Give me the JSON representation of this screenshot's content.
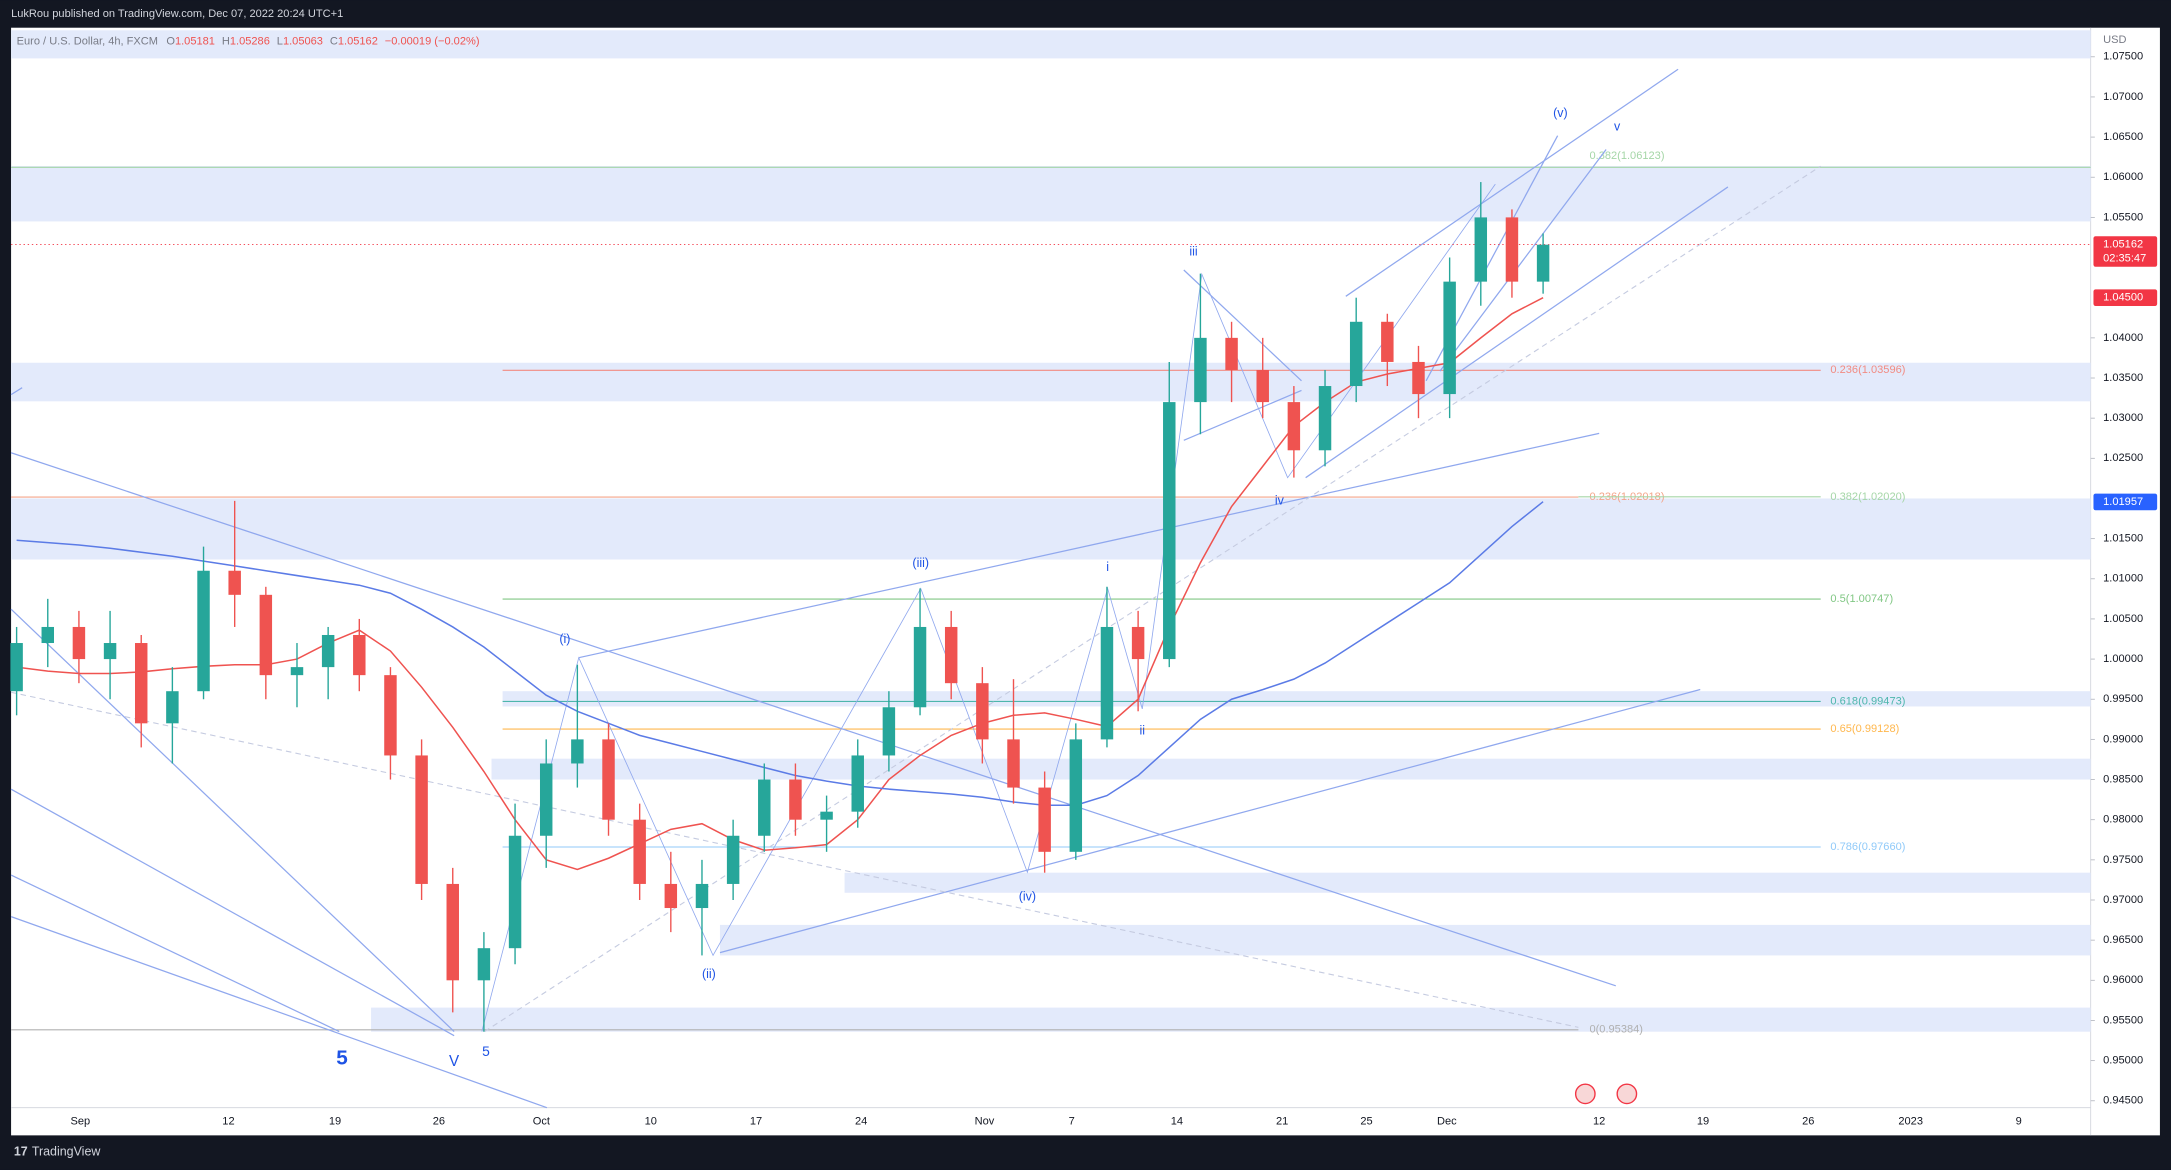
{
  "header": {
    "publisher": "LukRou published on TradingView.com, Dec 07, 2022 20:24 UTC+1",
    "brand": "TradingView"
  },
  "legend": {
    "symbol": "Euro / U.S. Dollar, 4h, FXCM",
    "items": [
      {
        "key": "O",
        "value": 1.05181
      },
      {
        "key": "H",
        "value": 1.05286
      },
      {
        "key": "L",
        "value": 1.05063
      },
      {
        "key": "C",
        "value": 1.05162
      }
    ],
    "change": "−0.00019 (−0.02%)"
  },
  "chart_data": {
    "type": "candlestick",
    "currency": "USD",
    "ylim": [
      0.94414,
      1.07862
    ],
    "grid": false,
    "yticks": [
      {
        "value": 1.075,
        "label": "1.07500"
      },
      {
        "value": 1.07,
        "label": "1.07000"
      },
      {
        "value": 1.065,
        "label": "1.06500"
      },
      {
        "value": 1.06,
        "label": "1.06000"
      },
      {
        "value": 1.055,
        "label": "1.05500"
      },
      {
        "value": 1.04,
        "label": "1.04000"
      },
      {
        "value": 1.035,
        "label": "1.03500"
      },
      {
        "value": 1.03,
        "label": "1.03000"
      },
      {
        "value": 1.025,
        "label": "1.02500"
      },
      {
        "value": 1.015,
        "label": "1.01500"
      },
      {
        "value": 1.01,
        "label": "1.01000"
      },
      {
        "value": 1.005,
        "label": "1.00500"
      },
      {
        "value": 1,
        "label": "1.00000"
      },
      {
        "value": 0.995,
        "label": "0.99500"
      },
      {
        "value": 0.99,
        "label": "0.99000"
      },
      {
        "value": 0.985,
        "label": "0.98500"
      },
      {
        "value": 0.98,
        "label": "0.98000"
      },
      {
        "value": 0.975,
        "label": "0.97500"
      },
      {
        "value": 0.97,
        "label": "0.97000"
      },
      {
        "value": 0.965,
        "label": "0.96500"
      },
      {
        "value": 0.96,
        "label": "0.96000"
      },
      {
        "value": 0.955,
        "label": "0.95500"
      },
      {
        "value": 0.95,
        "label": "0.95000"
      },
      {
        "value": 0.945,
        "label": "0.94500"
      }
    ],
    "x_labels": [
      "Sep",
      "12",
      "19",
      "26",
      "Oct",
      "10",
      "17",
      "24",
      "Nov",
      "7",
      "14",
      "21",
      "25",
      "Dec",
      "12",
      "19",
      "26",
      "2023",
      "9"
    ],
    "up_color": "#26a69a",
    "down_color": "#ef5350",
    "open": [
      0.996,
      1.002,
      1.004,
      1.0,
      1.002,
      0.992,
      0.996,
      1.011,
      1.008,
      0.998,
      0.999,
      1.003,
      0.998,
      0.988,
      0.972,
      0.96,
      0.964,
      0.978,
      0.987,
      0.99,
      0.98,
      0.972,
      0.969,
      0.972,
      0.978,
      0.985,
      0.98,
      0.981,
      0.988,
      0.994,
      1.004,
      0.997,
      0.99,
      0.984,
      0.976,
      0.99,
      1.004,
      1.0,
      1.032,
      1.04,
      1.036,
      1.032,
      1.026,
      1.034,
      1.042,
      1.037,
      1.033,
      1.047,
      1.055,
      1.047
    ],
    "high": [
      1.004,
      1.0075,
      1.006,
      1.006,
      1.003,
      0.999,
      1.014,
      1.0197,
      1.009,
      1.002,
      1.004,
      1.005,
      0.999,
      0.99,
      0.974,
      0.966,
      0.982,
      0.99,
      0.9993,
      0.992,
      0.982,
      0.976,
      0.975,
      0.98,
      0.987,
      0.987,
      0.983,
      0.99,
      0.996,
      1.0088,
      1.006,
      0.999,
      0.9975,
      0.986,
      0.992,
      1.009,
      1.006,
      1.037,
      1.048,
      1.042,
      1.04,
      1.034,
      1.036,
      1.045,
      1.043,
      1.039,
      1.05,
      1.0594,
      1.056,
      1.053
    ],
    "low": [
      0.993,
      0.999,
      0.997,
      0.995,
      0.989,
      0.987,
      0.995,
      1.004,
      0.995,
      0.994,
      0.995,
      0.996,
      0.985,
      0.97,
      0.956,
      0.9536,
      0.962,
      0.974,
      0.984,
      0.978,
      0.97,
      0.966,
      0.9631,
      0.97,
      0.976,
      0.978,
      0.976,
      0.979,
      0.986,
      0.993,
      0.995,
      0.987,
      0.982,
      0.9734,
      0.975,
      0.989,
      0.9935,
      0.999,
      1.028,
      1.032,
      1.03,
      1.0226,
      1.024,
      1.032,
      1.034,
      1.03,
      1.03,
      1.044,
      1.045,
      1.0455
    ],
    "close": [
      1.002,
      1.004,
      1.0,
      1.002,
      0.992,
      0.996,
      1.011,
      1.008,
      0.998,
      0.999,
      1.003,
      0.998,
      0.988,
      0.972,
      0.96,
      0.964,
      0.978,
      0.987,
      0.99,
      0.98,
      0.972,
      0.969,
      0.972,
      0.978,
      0.985,
      0.98,
      0.981,
      0.988,
      0.994,
      1.004,
      0.997,
      0.99,
      0.984,
      0.976,
      0.99,
      1.004,
      1.0,
      1.032,
      1.04,
      1.036,
      1.032,
      1.026,
      1.034,
      1.042,
      1.037,
      1.033,
      1.047,
      1.055,
      1.047,
      1.0516
    ],
    "overlays": [
      {
        "color": "#ef5350",
        "values": [
          0.999,
          0.9985,
          0.9982,
          0.9982,
          0.9984,
          0.9988,
          0.9991,
          0.9993,
          0.9993,
          1.0,
          1.002,
          1.0036,
          1.001,
          0.9965,
          0.9915,
          0.986,
          0.98,
          0.975,
          0.9738,
          0.9752,
          0.977,
          0.9788,
          0.9795,
          0.9775,
          0.9762,
          0.9765,
          0.9769,
          0.98,
          0.985,
          0.988,
          0.9905,
          0.992,
          0.993,
          0.9933,
          0.9925,
          0.9916,
          0.995,
          1.004,
          1.012,
          1.019,
          1.024,
          1.029,
          1.032,
          1.0345,
          1.0355,
          1.0362,
          1.0369,
          1.04,
          1.043,
          1.045
        ]
      },
      {
        "color": "#5b7be6",
        "values": [
          1.0148,
          1.0145,
          1.0142,
          1.0138,
          1.0133,
          1.0128,
          1.0122,
          1.0116,
          1.011,
          1.0104,
          1.0098,
          1.0092,
          1.0082,
          1.0062,
          1.004,
          1.0015,
          0.9985,
          0.9955,
          0.9935,
          0.992,
          0.9905,
          0.9895,
          0.9885,
          0.9875,
          0.9865,
          0.9855,
          0.9848,
          0.9842,
          0.9838,
          0.9835,
          0.9832,
          0.9828,
          0.9822,
          0.9818,
          0.9818,
          0.983,
          0.9855,
          0.989,
          0.9925,
          0.995,
          0.9962,
          0.9975,
          0.9995,
          1.002,
          1.0045,
          1.007,
          1.0095,
          1.013,
          1.0165,
          1.0196
        ]
      }
    ],
    "zone_color": "#e3eafb",
    "zones": [
      [
        1.0748,
        1.0783
      ],
      [
        1.0545,
        1.0614
      ],
      [
        1.0321,
        1.0369
      ],
      [
        1.0124,
        1.02
      ],
      [
        0.9941,
        0.996
      ],
      [
        0.985,
        0.9876
      ],
      [
        0.9709,
        0.9734
      ],
      [
        0.9631,
        0.9669
      ],
      [
        0.9536,
        0.9566
      ]
    ],
    "fib_levels": [
      {
        "label": "0.382(1.06123)",
        "value": 1.06123,
        "color": "#a5d6a7"
      },
      {
        "label": "0.236(1.03596)",
        "value": 1.03596,
        "color": "#f28b82"
      },
      {
        "label": "0.236(1.02018)",
        "value": 1.02018,
        "color": "#f4a58a"
      },
      {
        "label": "0.382(1.02020)",
        "value": 1.0202,
        "color": "#a5d6a7"
      },
      {
        "label": "0.5(1.00747)",
        "value": 1.00747,
        "color": "#81c784"
      },
      {
        "label": "0.618(0.99473)",
        "value": 0.99473,
        "color": "#4db6ac"
      },
      {
        "label": "0.65(0.99128)",
        "value": 0.99128,
        "color": "#ffb74d"
      },
      {
        "label": "0.786(0.97660)",
        "value": 0.9766,
        "color": "#90caf9"
      },
      {
        "label": "0(0.95384)",
        "value": 0.95384,
        "color": "#b0b0b0"
      }
    ],
    "price_tags": [
      {
        "value": 1.05162,
        "color": "#f23645"
      },
      {
        "value": 1.045,
        "label": "1.04500",
        "color": "#f23645"
      },
      {
        "value": 1.01957,
        "color": "#2962ff"
      }
    ],
    "countdown": "02:35:47",
    "wave_color": "#1e53e5",
    "wave_labels": [
      "(v)",
      "v",
      "iii",
      "iv",
      "(iii)",
      "i",
      "ii",
      "(i)",
      "(ii)",
      "(iv)",
      "5",
      "V",
      "5"
    ]
  }
}
